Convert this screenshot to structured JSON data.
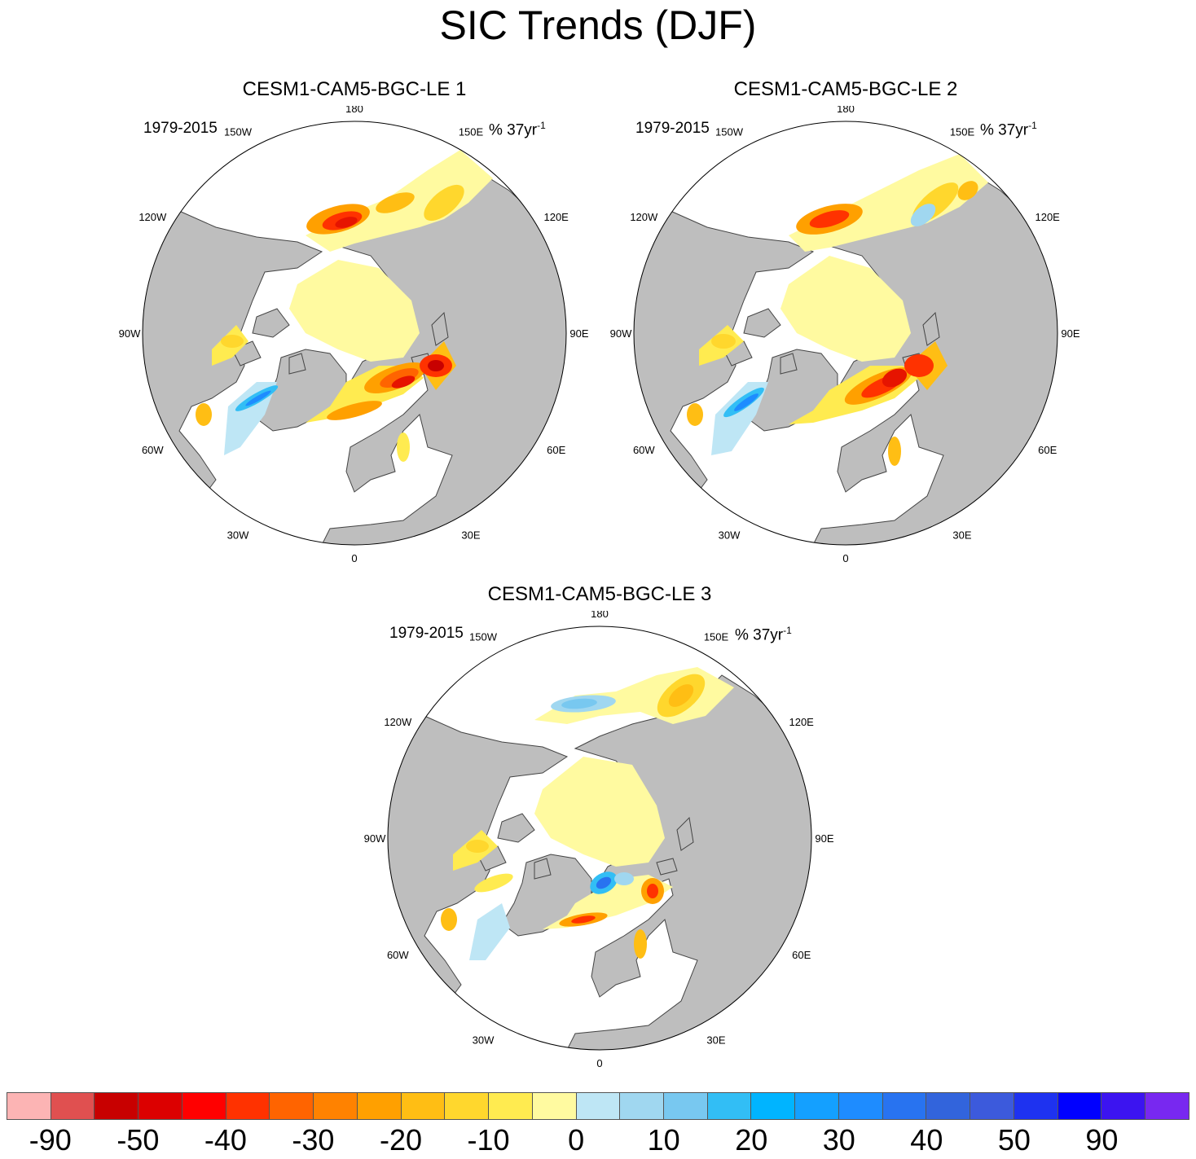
{
  "figure": {
    "title": "SIC Trends (DJF)"
  },
  "panels": [
    {
      "title": "CESM1-CAM5-BGC-LE 1",
      "period": "1979-2015",
      "units": "% 37yr",
      "units_exp": "-1"
    },
    {
      "title": "CESM1-CAM5-BGC-LE 2",
      "period": "1979-2015",
      "units": "% 37yr",
      "units_exp": "-1"
    },
    {
      "title": "CESM1-CAM5-BGC-LE 3",
      "period": "1979-2015",
      "units": "% 37yr",
      "units_exp": "-1"
    }
  ],
  "map_labels": [
    "180",
    "150E",
    "120E",
    "90E",
    "60E",
    "30E",
    "0",
    "30W",
    "60W",
    "90W",
    "120W",
    "150W"
  ],
  "colorbar": {
    "colors": [
      "#fcb4b4",
      "#e05050",
      "#c80000",
      "#dc0000",
      "#ff0000",
      "#ff3200",
      "#ff6400",
      "#ff8200",
      "#ffa000",
      "#ffbe14",
      "#ffd72d",
      "#ffeb50",
      "#fffaa0",
      "#bee6f5",
      "#a0d7f0",
      "#78c8f0",
      "#32bef5",
      "#00b4ff",
      "#14a0ff",
      "#1e8cff",
      "#2873f0",
      "#3264dc",
      "#3c5adc",
      "#1e32f0",
      "#0000ff",
      "#3c14f0",
      "#7828f0"
    ],
    "labels": [
      "-90",
      "-50",
      "-40",
      "-30",
      "-20",
      "-10",
      "0",
      "10",
      "20",
      "30",
      "40",
      "50",
      "90"
    ]
  },
  "colors": {
    "land": "#bebebe",
    "ocean": "#ffffff",
    "coast": "#444444"
  }
}
